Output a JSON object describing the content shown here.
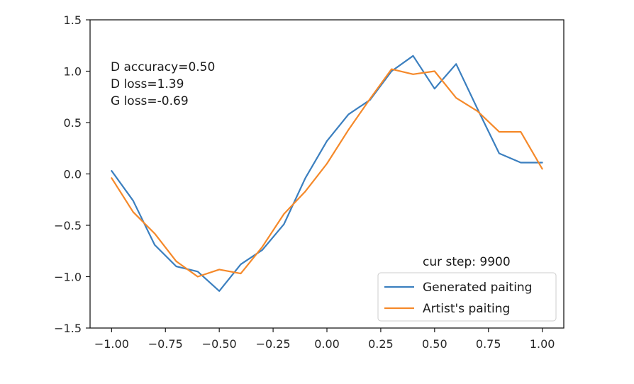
{
  "chart_data": {
    "type": "line",
    "xlim": [
      -1.1,
      1.1
    ],
    "ylim": [
      -1.5,
      1.5
    ],
    "xticks": [
      -1.0,
      -0.75,
      -0.5,
      -0.25,
      0.0,
      0.25,
      0.5,
      0.75,
      1.0
    ],
    "xtick_labels": [
      "−1.00",
      "−0.75",
      "−0.50",
      "−0.25",
      "0.00",
      "0.25",
      "0.50",
      "0.75",
      "1.00"
    ],
    "yticks": [
      -1.5,
      -1.0,
      -0.5,
      0.0,
      0.5,
      1.0,
      1.5
    ],
    "ytick_labels": [
      "−1.5",
      "−1.0",
      "−0.5",
      "0.0",
      "0.5",
      "1.0",
      "1.5"
    ],
    "grid": false,
    "legend_position": "lower-right",
    "series": [
      {
        "name": "Generated paiting",
        "color": "#3b7fbf",
        "x": [
          -1.0,
          -0.9,
          -0.8,
          -0.7,
          -0.6,
          -0.5,
          -0.4,
          -0.3,
          -0.2,
          -0.1,
          0.0,
          0.1,
          0.2,
          0.3,
          0.4,
          0.5,
          0.6,
          0.7,
          0.8,
          0.9,
          1.0
        ],
        "y": [
          0.03,
          -0.26,
          -0.69,
          -0.9,
          -0.95,
          -1.14,
          -0.88,
          -0.74,
          -0.49,
          -0.04,
          0.32,
          0.58,
          0.72,
          1.0,
          1.15,
          0.83,
          1.07,
          0.63,
          0.2,
          0.11,
          0.11
        ]
      },
      {
        "name": "Artist's paiting",
        "color": "#f5892a",
        "x": [
          -1.0,
          -0.9,
          -0.8,
          -0.7,
          -0.6,
          -0.5,
          -0.4,
          -0.3,
          -0.2,
          -0.1,
          0.0,
          0.1,
          0.2,
          0.3,
          0.4,
          0.5,
          0.6,
          0.7,
          0.8,
          0.9,
          1.0
        ],
        "y": [
          -0.04,
          -0.37,
          -0.58,
          -0.85,
          -1.0,
          -0.93,
          -0.97,
          -0.71,
          -0.39,
          -0.17,
          0.1,
          0.43,
          0.73,
          1.02,
          0.97,
          1.0,
          0.74,
          0.61,
          0.41,
          0.41,
          0.05
        ]
      }
    ],
    "annotations": [
      "D accuracy=0.50",
      "D loss=1.39",
      "G loss=-0.69"
    ],
    "step_label": "cur step: 9900"
  }
}
